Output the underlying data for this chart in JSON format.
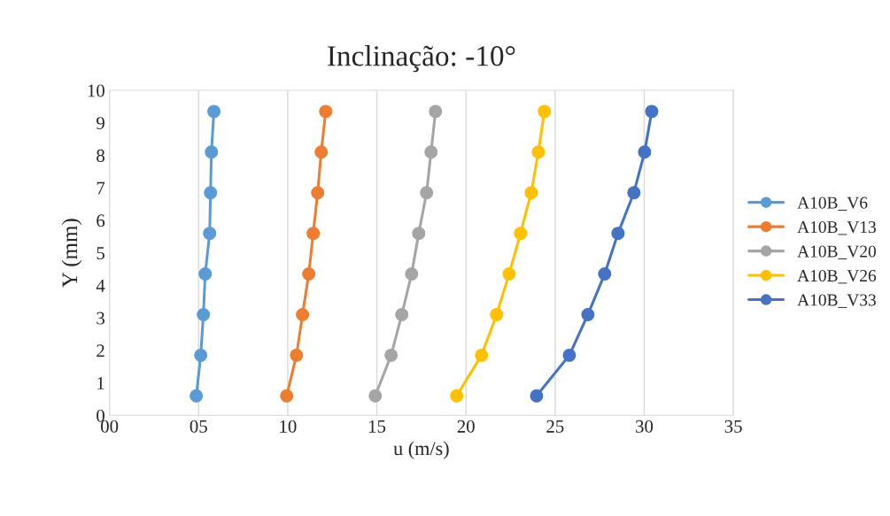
{
  "chart_data": {
    "type": "line",
    "title": "Inclinação: -10°",
    "xlabel": "u (m/s)",
    "ylabel": "Y (mm)",
    "xlim": [
      0,
      35
    ],
    "xticks": [
      {
        "value": 0,
        "label": "00"
      },
      {
        "value": 5,
        "label": "05"
      },
      10,
      15,
      20,
      25,
      30,
      35
    ],
    "ylim": [
      0,
      10
    ],
    "yticks": [
      0,
      1,
      2,
      3,
      4,
      5,
      6,
      7,
      8,
      9,
      10
    ],
    "grid": "x",
    "legend": "right",
    "marker": "circle",
    "line_style": "solid",
    "series": [
      {
        "name": "A10B_V6",
        "color": "#5b9bd5",
        "x": [
          4.87,
          5.12,
          5.27,
          5.37,
          5.62,
          5.67,
          5.72,
          5.86
        ],
        "values": [
          0.6,
          1.85,
          3.1,
          4.35,
          5.6,
          6.85,
          8.1,
          9.35
        ]
      },
      {
        "name": "A10B_V13",
        "color": "#ed7d31",
        "x": [
          9.94,
          10.49,
          10.83,
          11.18,
          11.43,
          11.68,
          11.88,
          12.13
        ],
        "values": [
          0.6,
          1.85,
          3.1,
          4.35,
          5.6,
          6.85,
          8.1,
          9.35
        ]
      },
      {
        "name": "A10B_V20",
        "color": "#a5a5a5",
        "x": [
          14.91,
          15.8,
          16.4,
          16.95,
          17.35,
          17.79,
          18.04,
          18.29
        ],
        "values": [
          0.6,
          1.85,
          3.1,
          4.35,
          5.6,
          6.85,
          8.1,
          9.35
        ]
      },
      {
        "name": "A10B_V26",
        "color": "#ffc000",
        "x": [
          19.48,
          20.87,
          21.72,
          22.42,
          23.06,
          23.66,
          24.06,
          24.4
        ],
        "values": [
          0.6,
          1.85,
          3.1,
          4.35,
          5.6,
          6.85,
          8.1,
          9.35
        ]
      },
      {
        "name": "A10B_V33",
        "color": "#4472c4",
        "x": [
          23.96,
          25.8,
          26.84,
          27.78,
          28.53,
          29.42,
          30.02,
          30.42
        ],
        "values": [
          0.6,
          1.85,
          3.1,
          4.35,
          5.6,
          6.85,
          8.1,
          9.35
        ]
      }
    ]
  }
}
